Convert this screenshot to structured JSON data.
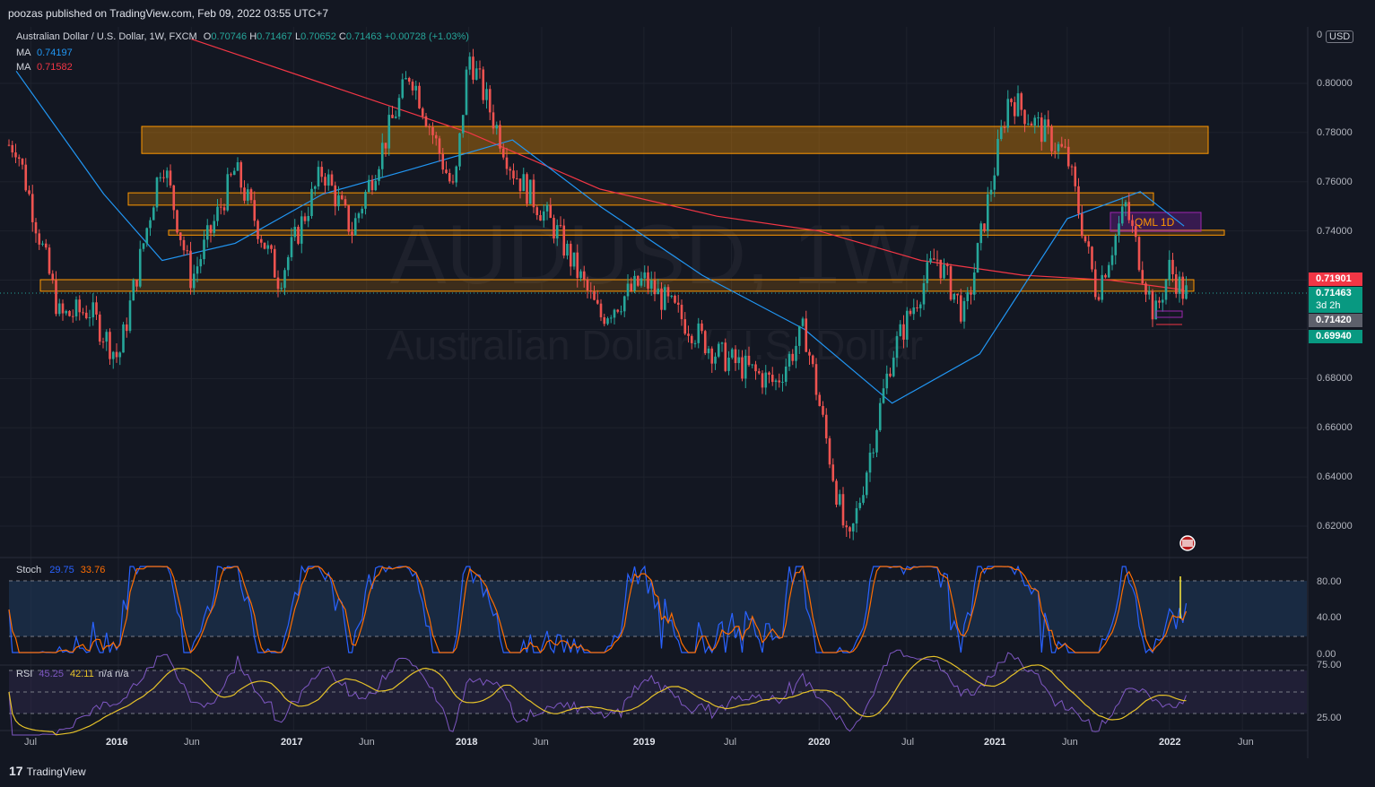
{
  "header": {
    "published": "poozas published on TradingView.com, Feb 09, 2022 03:55 UTC+7"
  },
  "legend": {
    "symbol": "Australian Dollar / U.S. Dollar, 1W, FXCM",
    "o_label": "O",
    "o_value": "0.70746",
    "h_label": "H",
    "h_value": "0.71467",
    "l_label": "L",
    "l_value": "0.70652",
    "c_label": "C",
    "c_value": "0.71463",
    "change": "+0.00728 (+1.03%)",
    "ma1_label": "MA",
    "ma1_value": "0.74197",
    "ma2_label": "MA",
    "ma2_value": "0.71582"
  },
  "watermark": {
    "line1": "AUDUSD, 1W",
    "line2": "Australian Dollar / U.S. Dollar"
  },
  "currency_button": "USD",
  "annotation_label": "QML 1D",
  "price_tags": [
    {
      "value": "0.71901",
      "color": "#f23645"
    },
    {
      "value": "0.71463",
      "color": "#089981",
      "extra": "3d 2h"
    },
    {
      "value": "0.71420",
      "color": "#5d606b"
    },
    {
      "value": "0.69940",
      "color": "#089981"
    }
  ],
  "stoch": {
    "label": "Stoch",
    "k": "29.75",
    "d": "33.76",
    "levels": [
      "80.00",
      "40.00",
      "0.00"
    ]
  },
  "rsi": {
    "label": "RSI",
    "v1": "45.25",
    "v2": "42.11",
    "na1": "n/a",
    "na2": "n/a",
    "levels": [
      "75.00",
      "25.00"
    ]
  },
  "footer": {
    "brand": "TradingView"
  },
  "colors": {
    "bg": "#131722",
    "up": "#26a69a",
    "down": "#ef5350",
    "ma_fast": "#2962ff",
    "ma_slow": "#f23645",
    "zone": "#ff9800"
  },
  "chart_data": {
    "type": "line",
    "title": "Australian Dollar / U.S. Dollar, 1W, FXCM",
    "y_ticks": [
      "0",
      "0.80000",
      "0.78000",
      "0.76000",
      "0.74000",
      "0.72000",
      "0.70000",
      "0.68000",
      "0.66000",
      "0.64000",
      "0.62000"
    ],
    "x_ticks": [
      "Jul",
      "2016",
      "Jun",
      "2017",
      "Jun",
      "2018",
      "Jun",
      "2019",
      "Jul",
      "2020",
      "Jul",
      "2021",
      "Jun",
      "2022",
      "Jun"
    ],
    "ylim": [
      0.607,
      0.819
    ],
    "zones": [
      {
        "low": 0.7715,
        "high": 0.7825
      },
      {
        "low": 0.7505,
        "high": 0.7555
      },
      {
        "low": 0.7383,
        "high": 0.7403
      },
      {
        "low": 0.7155,
        "high": 0.7202
      }
    ],
    "price_series": [
      {
        "x": "2015-06",
        "y": 0.775
      },
      {
        "x": "2015-09",
        "y": 0.705
      },
      {
        "x": "2015-11",
        "y": 0.708
      },
      {
        "x": "2016-01",
        "y": 0.688
      },
      {
        "x": "2016-04",
        "y": 0.77
      },
      {
        "x": "2016-06",
        "y": 0.72
      },
      {
        "x": "2016-09",
        "y": 0.765
      },
      {
        "x": "2016-12",
        "y": 0.72
      },
      {
        "x": "2017-03",
        "y": 0.765
      },
      {
        "x": "2017-05",
        "y": 0.74
      },
      {
        "x": "2017-09",
        "y": 0.805
      },
      {
        "x": "2017-12",
        "y": 0.755
      },
      {
        "x": "2018-01",
        "y": 0.812
      },
      {
        "x": "2018-04",
        "y": 0.765
      },
      {
        "x": "2018-07",
        "y": 0.74
      },
      {
        "x": "2018-10",
        "y": 0.705
      },
      {
        "x": "2019-01",
        "y": 0.72
      },
      {
        "x": "2019-06",
        "y": 0.69
      },
      {
        "x": "2019-10",
        "y": 0.678
      },
      {
        "x": "2019-12",
        "y": 0.7
      },
      {
        "x": "2020-03",
        "y": 0.61
      },
      {
        "x": "2020-06",
        "y": 0.69
      },
      {
        "x": "2020-09",
        "y": 0.73
      },
      {
        "x": "2020-11",
        "y": 0.705
      },
      {
        "x": "2021-02",
        "y": 0.795
      },
      {
        "x": "2021-06",
        "y": 0.77
      },
      {
        "x": "2021-08",
        "y": 0.715
      },
      {
        "x": "2021-10",
        "y": 0.75
      },
      {
        "x": "2021-12",
        "y": 0.705
      },
      {
        "x": "2022-01",
        "y": 0.725
      },
      {
        "x": "2022-02",
        "y": 0.7146
      }
    ],
    "ma_fast": [
      {
        "x": "2015-06",
        "y": 0.805
      },
      {
        "x": "2015-12",
        "y": 0.755
      },
      {
        "x": "2016-04",
        "y": 0.728
      },
      {
        "x": "2016-09",
        "y": 0.735
      },
      {
        "x": "2017-03",
        "y": 0.755
      },
      {
        "x": "2017-09",
        "y": 0.765
      },
      {
        "x": "2018-04",
        "y": 0.777
      },
      {
        "x": "2018-10",
        "y": 0.75
      },
      {
        "x": "2019-05",
        "y": 0.722
      },
      {
        "x": "2019-12",
        "y": 0.7
      },
      {
        "x": "2020-06",
        "y": 0.67
      },
      {
        "x": "2020-12",
        "y": 0.69
      },
      {
        "x": "2021-06",
        "y": 0.745
      },
      {
        "x": "2021-11",
        "y": 0.756
      },
      {
        "x": "2022-02",
        "y": 0.742
      }
    ],
    "ma_slow": [
      {
        "x": "2016-06",
        "y": 0.818
      },
      {
        "x": "2017-03",
        "y": 0.8
      },
      {
        "x": "2018-01",
        "y": 0.78
      },
      {
        "x": "2018-10",
        "y": 0.757
      },
      {
        "x": "2019-06",
        "y": 0.746
      },
      {
        "x": "2020-01",
        "y": 0.74
      },
      {
        "x": "2020-08",
        "y": 0.728
      },
      {
        "x": "2021-03",
        "y": 0.722
      },
      {
        "x": "2021-09",
        "y": 0.72
      },
      {
        "x": "2022-02",
        "y": 0.716
      }
    ]
  }
}
